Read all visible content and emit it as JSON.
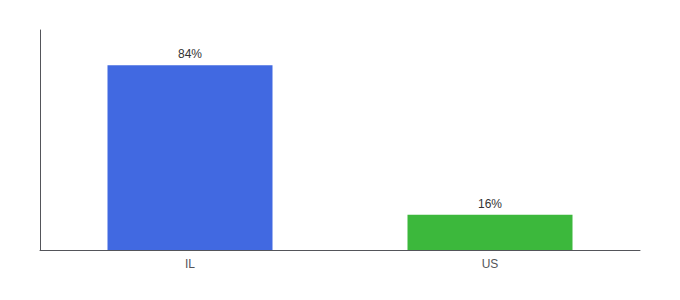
{
  "chart_data": {
    "type": "bar",
    "categories": [
      "IL",
      "US"
    ],
    "values": [
      84,
      16
    ],
    "value_labels": [
      "84%",
      "16%"
    ],
    "colors": [
      "#4169e1",
      "#3cb83c"
    ],
    "ylim": [
      0,
      100
    ],
    "grid": false,
    "data_labels": true,
    "tick_labels": "x"
  }
}
